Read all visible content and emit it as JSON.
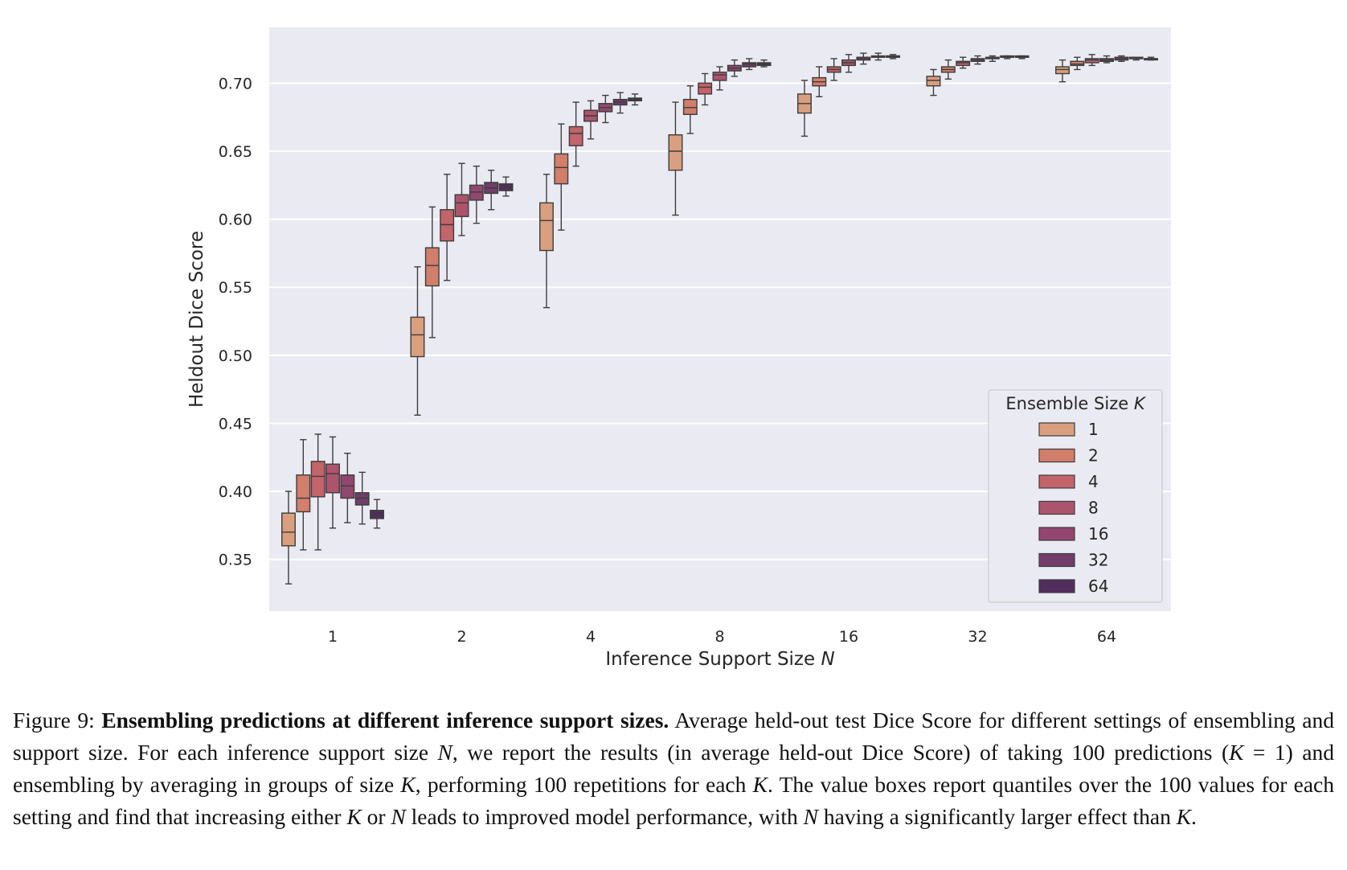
{
  "chart_data": {
    "type": "box",
    "xlabel": "Inference Support Size N",
    "ylabel": "Heldout Dice Score",
    "categories": [
      "1",
      "2",
      "4",
      "8",
      "16",
      "32",
      "64"
    ],
    "yticks": [
      "0.35",
      "0.40",
      "0.45",
      "0.50",
      "0.55",
      "0.60",
      "0.65",
      "0.70"
    ],
    "ylim": [
      0.312,
      0.741
    ],
    "grid": true,
    "legend": {
      "title": "Ensemble Size K",
      "placement": "bottom-right"
    },
    "note": "each box: [lower whisker, Q1, median, Q3, upper whisker]",
    "series": [
      {
        "name": "1",
        "color": "#d99f7e",
        "boxes": [
          [
            0.332,
            0.36,
            0.37,
            0.384,
            0.4
          ],
          [
            0.456,
            0.499,
            0.515,
            0.528,
            0.565
          ],
          [
            0.535,
            0.577,
            0.599,
            0.612,
            0.633
          ],
          [
            0.603,
            0.636,
            0.65,
            0.662,
            0.686
          ],
          [
            0.661,
            0.678,
            0.685,
            0.692,
            0.702
          ],
          [
            0.691,
            0.698,
            0.702,
            0.705,
            0.71
          ],
          [
            0.701,
            0.707,
            0.71,
            0.712,
            0.717
          ]
        ]
      },
      {
        "name": "2",
        "color": "#d17e6b",
        "boxes": [
          [
            0.357,
            0.385,
            0.395,
            0.412,
            0.438
          ],
          [
            0.513,
            0.551,
            0.566,
            0.579,
            0.609
          ],
          [
            0.592,
            0.626,
            0.638,
            0.648,
            0.67
          ],
          [
            0.663,
            0.677,
            0.682,
            0.688,
            0.698
          ],
          [
            0.69,
            0.698,
            0.701,
            0.704,
            0.712
          ],
          [
            0.703,
            0.708,
            0.71,
            0.712,
            0.717
          ],
          [
            0.71,
            0.713,
            0.714,
            0.716,
            0.719
          ]
        ]
      },
      {
        "name": "4",
        "color": "#c3636a",
        "boxes": [
          [
            0.357,
            0.396,
            0.411,
            0.422,
            0.442
          ],
          [
            0.555,
            0.584,
            0.596,
            0.607,
            0.633
          ],
          [
            0.639,
            0.654,
            0.663,
            0.668,
            0.686
          ],
          [
            0.684,
            0.692,
            0.697,
            0.7,
            0.707
          ],
          [
            0.702,
            0.708,
            0.71,
            0.712,
            0.718
          ],
          [
            0.711,
            0.713,
            0.715,
            0.716,
            0.719
          ],
          [
            0.713,
            0.715,
            0.717,
            0.718,
            0.721
          ]
        ]
      },
      {
        "name": "8",
        "color": "#ad546d",
        "boxes": [
          [
            0.373,
            0.399,
            0.413,
            0.42,
            0.44
          ],
          [
            0.588,
            0.602,
            0.612,
            0.618,
            0.641
          ],
          [
            0.659,
            0.672,
            0.676,
            0.68,
            0.687
          ],
          [
            0.695,
            0.702,
            0.706,
            0.708,
            0.712
          ],
          [
            0.708,
            0.713,
            0.715,
            0.717,
            0.721
          ],
          [
            0.714,
            0.716,
            0.717,
            0.718,
            0.72
          ],
          [
            0.715,
            0.716,
            0.717,
            0.718,
            0.72
          ]
        ]
      },
      {
        "name": "16",
        "color": "#91476f",
        "boxes": [
          [
            0.377,
            0.395,
            0.404,
            0.412,
            0.428
          ],
          [
            0.597,
            0.614,
            0.62,
            0.625,
            0.639
          ],
          [
            0.671,
            0.679,
            0.682,
            0.685,
            0.691
          ],
          [
            0.705,
            0.709,
            0.711,
            0.713,
            0.717
          ],
          [
            0.714,
            0.717,
            0.718,
            0.719,
            0.722
          ],
          [
            0.716,
            0.718,
            0.718,
            0.719,
            0.72
          ],
          [
            0.716,
            0.717,
            0.718,
            0.719,
            0.72
          ]
        ]
      },
      {
        "name": "32",
        "color": "#723c6b",
        "boxes": [
          [
            0.376,
            0.39,
            0.395,
            0.399,
            0.414
          ],
          [
            0.607,
            0.619,
            0.623,
            0.627,
            0.636
          ],
          [
            0.678,
            0.684,
            0.686,
            0.688,
            0.693
          ],
          [
            0.71,
            0.712,
            0.714,
            0.715,
            0.718
          ],
          [
            0.717,
            0.719,
            0.719,
            0.72,
            0.722
          ],
          [
            0.718,
            0.719,
            0.719,
            0.72,
            0.72
          ],
          [
            0.717,
            0.718,
            0.718,
            0.719,
            0.719
          ]
        ]
      },
      {
        "name": "64",
        "color": "#522e5c",
        "boxes": [
          [
            0.373,
            0.38,
            0.383,
            0.386,
            0.394
          ],
          [
            0.617,
            0.621,
            0.624,
            0.626,
            0.631
          ],
          [
            0.684,
            0.687,
            0.688,
            0.689,
            0.692
          ],
          [
            0.712,
            0.713,
            0.714,
            0.715,
            0.717
          ],
          [
            0.718,
            0.719,
            0.72,
            0.72,
            0.721
          ],
          [
            0.718,
            0.719,
            0.719,
            0.72,
            0.72
          ],
          [
            0.717,
            0.718,
            0.718,
            0.718,
            0.719
          ]
        ]
      }
    ]
  },
  "caption": {
    "runs": [
      {
        "t": "Figure 9: ",
        "s": "n"
      },
      {
        "t": "Ensembling predictions at different inference support sizes.",
        "s": "b"
      },
      {
        "t": " Average held-out test Dice Score for different settings of ensembling and support size. For each inference support size ",
        "s": "n"
      },
      {
        "t": "N",
        "s": "i"
      },
      {
        "t": ", we report the results (in average held-out Dice Score) of taking 100 predictions (",
        "s": "n"
      },
      {
        "t": "K",
        "s": "i"
      },
      {
        "t": " = 1) and ensembling by averaging in groups of size ",
        "s": "n"
      },
      {
        "t": "K",
        "s": "i"
      },
      {
        "t": ", performing 100 repetitions for each ",
        "s": "n"
      },
      {
        "t": "K",
        "s": "i"
      },
      {
        "t": ". The value boxes report quantiles over the 100 values for each setting and find that increasing either ",
        "s": "n"
      },
      {
        "t": "K",
        "s": "i"
      },
      {
        "t": " or ",
        "s": "n"
      },
      {
        "t": "N",
        "s": "i"
      },
      {
        "t": " leads to improved model performance, with ",
        "s": "n"
      },
      {
        "t": "N",
        "s": "i"
      },
      {
        "t": " having a significantly larger effect than ",
        "s": "n"
      },
      {
        "t": "K",
        "s": "i"
      },
      {
        "t": ".",
        "s": "n"
      }
    ]
  }
}
